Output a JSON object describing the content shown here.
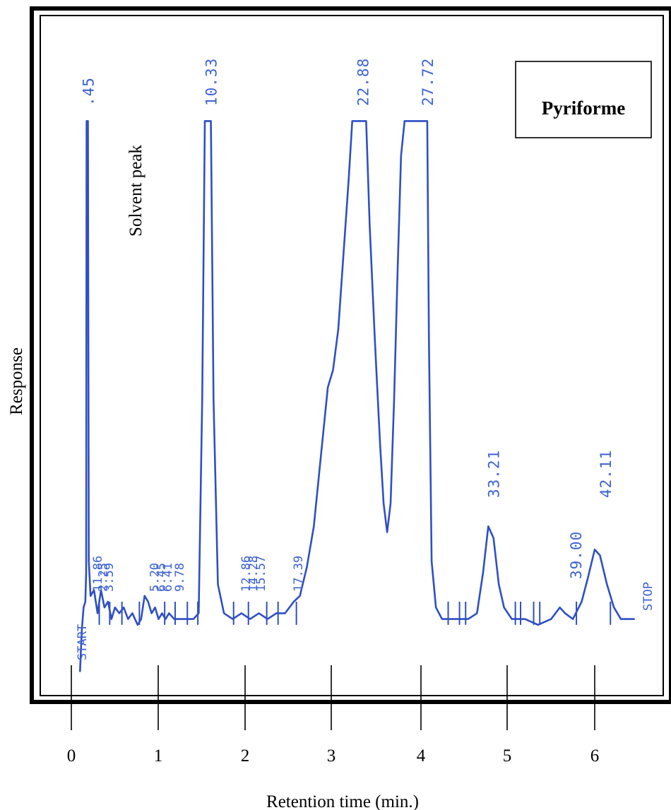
{
  "chart_data": {
    "type": "line",
    "xlabel": "Retention time (min.)",
    "ylabel": "Response",
    "xlim": [
      0,
      6.5
    ],
    "x_ticks": [
      "0",
      "1",
      "2",
      "3",
      "4",
      "5",
      "6"
    ],
    "legend": "Pyriforme",
    "annotation": "Solvent peak",
    "stop_label": "STOP",
    "start_label": "START",
    "series": [
      {
        "points": [
          [
            0.1,
            0.03
          ],
          [
            0.12,
            0.1
          ],
          [
            0.14,
            0.14
          ],
          [
            0.16,
            0.15
          ],
          [
            0.17,
            0.2
          ],
          [
            0.175,
            0.98
          ],
          [
            0.19,
            0.98
          ],
          [
            0.2,
            0.22
          ],
          [
            0.22,
            0.16
          ],
          [
            0.26,
            0.17
          ],
          [
            0.3,
            0.13
          ],
          [
            0.34,
            0.17
          ],
          [
            0.38,
            0.14
          ],
          [
            0.42,
            0.15
          ],
          [
            0.46,
            0.12
          ],
          [
            0.5,
            0.14
          ],
          [
            0.55,
            0.13
          ],
          [
            0.6,
            0.14
          ],
          [
            0.65,
            0.12
          ],
          [
            0.7,
            0.13
          ],
          [
            0.76,
            0.11
          ],
          [
            0.8,
            0.12
          ],
          [
            0.84,
            0.16
          ],
          [
            0.88,
            0.15
          ],
          [
            0.92,
            0.13
          ],
          [
            0.96,
            0.14
          ],
          [
            1.0,
            0.12
          ],
          [
            1.04,
            0.13
          ],
          [
            1.08,
            0.12
          ],
          [
            1.12,
            0.13
          ],
          [
            1.18,
            0.12
          ],
          [
            1.25,
            0.12
          ],
          [
            1.32,
            0.12
          ],
          [
            1.4,
            0.12
          ],
          [
            1.46,
            0.13
          ],
          [
            1.5,
            0.5
          ],
          [
            1.53,
            0.98
          ],
          [
            1.6,
            0.98
          ],
          [
            1.63,
            0.5
          ],
          [
            1.68,
            0.18
          ],
          [
            1.75,
            0.13
          ],
          [
            1.85,
            0.12
          ],
          [
            1.95,
            0.13
          ],
          [
            2.05,
            0.12
          ],
          [
            2.15,
            0.13
          ],
          [
            2.25,
            0.12
          ],
          [
            2.35,
            0.13
          ],
          [
            2.45,
            0.13
          ],
          [
            2.55,
            0.15
          ],
          [
            2.62,
            0.16
          ],
          [
            2.7,
            0.21
          ],
          [
            2.78,
            0.28
          ],
          [
            2.86,
            0.4
          ],
          [
            2.94,
            0.52
          ],
          [
            3.0,
            0.55
          ],
          [
            3.06,
            0.62
          ],
          [
            3.12,
            0.75
          ],
          [
            3.18,
            0.88
          ],
          [
            3.22,
            0.98
          ],
          [
            3.38,
            0.98
          ],
          [
            3.42,
            0.8
          ],
          [
            3.48,
            0.6
          ],
          [
            3.54,
            0.42
          ],
          [
            3.58,
            0.32
          ],
          [
            3.62,
            0.27
          ],
          [
            3.66,
            0.32
          ],
          [
            3.7,
            0.5
          ],
          [
            3.74,
            0.72
          ],
          [
            3.78,
            0.92
          ],
          [
            3.82,
            0.98
          ],
          [
            4.08,
            0.98
          ],
          [
            4.1,
            0.6
          ],
          [
            4.13,
            0.22
          ],
          [
            4.18,
            0.14
          ],
          [
            4.25,
            0.12
          ],
          [
            4.4,
            0.12
          ],
          [
            4.55,
            0.12
          ],
          [
            4.65,
            0.13
          ],
          [
            4.72,
            0.2
          ],
          [
            4.78,
            0.28
          ],
          [
            4.84,
            0.26
          ],
          [
            4.9,
            0.18
          ],
          [
            4.96,
            0.14
          ],
          [
            5.05,
            0.12
          ],
          [
            5.2,
            0.12
          ],
          [
            5.35,
            0.11
          ],
          [
            5.5,
            0.12
          ],
          [
            5.6,
            0.14
          ],
          [
            5.66,
            0.13
          ],
          [
            5.75,
            0.12
          ],
          [
            5.85,
            0.15
          ],
          [
            5.92,
            0.19
          ],
          [
            6.0,
            0.24
          ],
          [
            6.06,
            0.23
          ],
          [
            6.14,
            0.18
          ],
          [
            6.22,
            0.14
          ],
          [
            6.3,
            0.12
          ],
          [
            6.4,
            0.12
          ],
          [
            6.45,
            0.12
          ]
        ]
      }
    ],
    "peak_labels": [
      {
        "text": ".45",
        "x": 0.19
      },
      {
        "text": "10.33",
        "x": 1.6
      },
      {
        "text": "22.88",
        "x": 3.34
      },
      {
        "text": "27.72",
        "x": 4.08
      },
      {
        "text": "33.21",
        "x": 4.84
      },
      {
        "text": "39.00",
        "x": 5.78
      },
      {
        "text": "42.11",
        "x": 6.12
      }
    ],
    "minor_labels": [
      {
        "text": "11.86",
        "x": 0.3
      },
      {
        "text": "2.25",
        "x": 0.36
      },
      {
        "text": "3.59",
        "x": 0.43
      },
      {
        "text": "5.20",
        "x": 0.95
      },
      {
        "text": "6.45",
        "x": 1.03
      },
      {
        "text": "6.41",
        "x": 1.1
      },
      {
        "text": "9.78",
        "x": 1.24
      },
      {
        "text": "12.86",
        "x": 2.0
      },
      {
        "text": "14.28",
        "x": 2.08
      },
      {
        "text": "15.57",
        "x": 2.17
      },
      {
        "text": "17.39",
        "x": 2.6
      }
    ],
    "markers_x": [
      0.32,
      0.44,
      0.58,
      0.78,
      1.07,
      1.19,
      1.33,
      1.45,
      1.86,
      2.03,
      2.24,
      2.37,
      2.58,
      4.32,
      4.45,
      4.52,
      5.09,
      5.15,
      5.3,
      5.37,
      5.79,
      6.18
    ]
  }
}
